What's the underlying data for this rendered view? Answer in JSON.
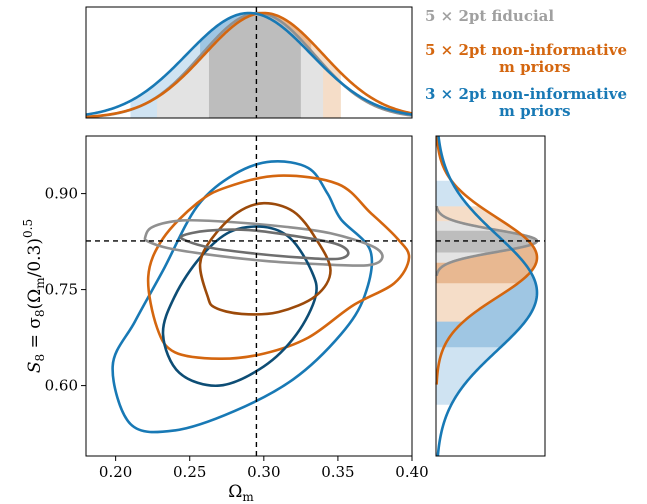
{
  "chart_data": {
    "type": "contour",
    "xlabel": "Ω",
    "xlabel_sub": "m",
    "ylabel": "S8 = σ8(Ωm/0.3)^0.5",
    "ylabel_parts": {
      "s": "S",
      "s_sub": "8",
      "eq": " = σ",
      "sig_sub": "8",
      "open": "(Ω",
      "om_sub": "m",
      "close": "/0.3)",
      "exp": "0.5"
    },
    "xlim": [
      0.18,
      0.4
    ],
    "ylim": [
      0.49,
      0.99
    ],
    "xticks": [
      "0.20",
      "0.25",
      "0.30",
      "0.35",
      "0.40"
    ],
    "yticks": [
      "0.60",
      "0.75",
      "0.90"
    ],
    "xtick_values": [
      0.2,
      0.25,
      0.3,
      0.35,
      0.4
    ],
    "ytick_values": [
      0.6,
      0.75,
      0.9
    ],
    "fiducial": {
      "omega_m": 0.295,
      "s8": 0.826
    },
    "legend": [
      {
        "lines": [
          "5 × 2pt fiducial"
        ],
        "color": "#a0a0a0"
      },
      {
        "lines": [
          "5 × 2pt non-informative",
          "m priors"
        ],
        "color": "#d4660f"
      },
      {
        "lines": [
          "3 × 2pt non-informative",
          "m priors"
        ],
        "color": "#1879b5"
      }
    ],
    "series": [
      {
        "name": "5 × 2pt fiducial",
        "color_outer": "#909090",
        "color_inner": "#6e6e6e",
        "omega_m_marginal": {
          "mean": 0.296,
          "sd": 0.038,
          "ci68": [
            0.263,
            0.325
          ],
          "ci95": [
            0.228,
            0.34
          ]
        },
        "s8_marginal": {
          "mean": 0.826,
          "sd": 0.017,
          "ci68": [
            0.808,
            0.842
          ],
          "ci95": [
            0.792,
            0.857
          ]
        },
        "contour95": [
          [
            0.22,
            0.832
          ],
          [
            0.225,
            0.848
          ],
          [
            0.245,
            0.858
          ],
          [
            0.275,
            0.856
          ],
          [
            0.315,
            0.848
          ],
          [
            0.345,
            0.838
          ],
          [
            0.373,
            0.818
          ],
          [
            0.38,
            0.8
          ],
          [
            0.37,
            0.788
          ],
          [
            0.335,
            0.79
          ],
          [
            0.3,
            0.795
          ],
          [
            0.262,
            0.805
          ],
          [
            0.235,
            0.815
          ],
          [
            0.222,
            0.825
          ]
        ],
        "contour68": [
          [
            0.245,
            0.834
          ],
          [
            0.262,
            0.842
          ],
          [
            0.29,
            0.843
          ],
          [
            0.32,
            0.834
          ],
          [
            0.348,
            0.822
          ],
          [
            0.357,
            0.808
          ],
          [
            0.35,
            0.798
          ],
          [
            0.325,
            0.8
          ],
          [
            0.295,
            0.806
          ],
          [
            0.265,
            0.815
          ],
          [
            0.248,
            0.826
          ]
        ]
      },
      {
        "name": "5 × 2pt non-informative m priors",
        "color_outer": "#d4660f",
        "color_inner": "#9c4a0a",
        "omega_m_marginal": {
          "mean": 0.3,
          "sd": 0.04,
          "ci68": [
            0.262,
            0.332
          ],
          "ci95": [
            0.228,
            0.352
          ]
        },
        "s8_marginal": {
          "mean": 0.8,
          "sd": 0.062,
          "ci68": [
            0.76,
            0.84
          ],
          "ci95": [
            0.7,
            0.88
          ]
        },
        "contour95": [
          [
            0.228,
            0.69
          ],
          [
            0.222,
            0.77
          ],
          [
            0.232,
            0.83
          ],
          [
            0.255,
            0.885
          ],
          [
            0.275,
            0.91
          ],
          [
            0.31,
            0.928
          ],
          [
            0.35,
            0.915
          ],
          [
            0.372,
            0.87
          ],
          [
            0.39,
            0.83
          ],
          [
            0.398,
            0.8
          ],
          [
            0.388,
            0.76
          ],
          [
            0.36,
            0.725
          ],
          [
            0.33,
            0.675
          ],
          [
            0.3,
            0.65
          ],
          [
            0.27,
            0.642
          ],
          [
            0.24,
            0.652
          ]
        ],
        "contour68": [
          [
            0.262,
            0.74
          ],
          [
            0.257,
            0.79
          ],
          [
            0.265,
            0.83
          ],
          [
            0.282,
            0.87
          ],
          [
            0.3,
            0.885
          ],
          [
            0.32,
            0.872
          ],
          [
            0.335,
            0.83
          ],
          [
            0.345,
            0.78
          ],
          [
            0.335,
            0.74
          ],
          [
            0.31,
            0.715
          ],
          [
            0.285,
            0.712
          ],
          [
            0.267,
            0.722
          ]
        ]
      },
      {
        "name": "3 × 2pt non-informative m priors",
        "color_outer": "#1879b5",
        "color_inner": "#0d4d75",
        "omega_m_marginal": {
          "mean": 0.29,
          "sd": 0.042,
          "ci68": [
            0.257,
            0.321
          ],
          "ci95": [
            0.21,
            0.34
          ]
        },
        "s8_marginal": {
          "mean": 0.745,
          "sd": 0.09,
          "ci68": [
            0.66,
            0.835
          ],
          "ci95": [
            0.57,
            0.92
          ]
        },
        "contour95": [
          [
            0.198,
            0.63
          ],
          [
            0.213,
            0.7
          ],
          [
            0.232,
            0.78
          ],
          [
            0.255,
            0.88
          ],
          [
            0.28,
            0.93
          ],
          [
            0.305,
            0.95
          ],
          [
            0.33,
            0.94
          ],
          [
            0.343,
            0.9
          ],
          [
            0.352,
            0.86
          ],
          [
            0.372,
            0.81
          ],
          [
            0.368,
            0.74
          ],
          [
            0.352,
            0.68
          ],
          [
            0.32,
            0.61
          ],
          [
            0.28,
            0.56
          ],
          [
            0.24,
            0.53
          ],
          [
            0.21,
            0.54
          ]
        ],
        "contour68": [
          [
            0.232,
            0.68
          ],
          [
            0.24,
            0.74
          ],
          [
            0.257,
            0.8
          ],
          [
            0.277,
            0.84
          ],
          [
            0.3,
            0.848
          ],
          [
            0.318,
            0.83
          ],
          [
            0.332,
            0.78
          ],
          [
            0.335,
            0.74
          ],
          [
            0.322,
            0.68
          ],
          [
            0.3,
            0.63
          ],
          [
            0.27,
            0.6
          ],
          [
            0.243,
            0.62
          ]
        ]
      }
    ]
  }
}
